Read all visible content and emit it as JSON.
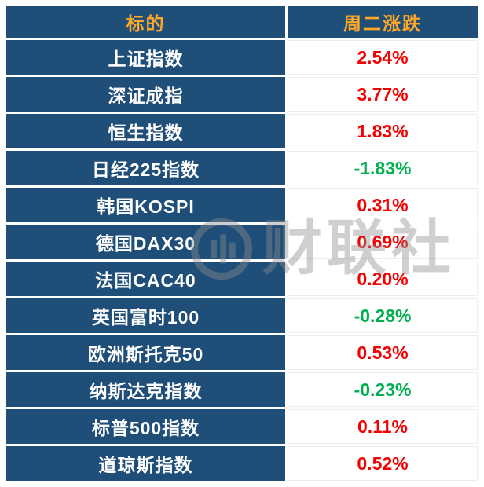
{
  "colors": {
    "header_bg": "#1F4E79",
    "header_text": "#FFA726",
    "label_bg": "#1F4E79",
    "label_text": "#FFFFFF",
    "up_color": "#F40000",
    "down_color": "#00B050",
    "watermark_color": "#8E8E8E"
  },
  "chart_data": {
    "type": "table",
    "columns": [
      "标的",
      "周二涨跌"
    ],
    "rows": [
      {
        "label": "上证指数",
        "change": "2.54%",
        "direction": "up"
      },
      {
        "label": "深证成指",
        "change": "3.77%",
        "direction": "up"
      },
      {
        "label": "恒生指数",
        "change": "1.83%",
        "direction": "up"
      },
      {
        "label": "日经225指数",
        "change": "-1.83%",
        "direction": "down"
      },
      {
        "label": "韩国KOSPI",
        "change": "0.31%",
        "direction": "up"
      },
      {
        "label": "德国DAX30",
        "change": "0.69%",
        "direction": "up"
      },
      {
        "label": "法国CAC40",
        "change": "0.20%",
        "direction": "up"
      },
      {
        "label": "英国富时100",
        "change": "-0.28%",
        "direction": "down"
      },
      {
        "label": "欧洲斯托克50",
        "change": "0.53%",
        "direction": "up"
      },
      {
        "label": "纳斯达克指数",
        "change": "-0.23%",
        "direction": "down"
      },
      {
        "label": "标普500指数",
        "change": "0.11%",
        "direction": "up"
      },
      {
        "label": "道琼斯指数",
        "change": "0.52%",
        "direction": "up"
      }
    ]
  },
  "watermark": {
    "text": "财联社"
  }
}
